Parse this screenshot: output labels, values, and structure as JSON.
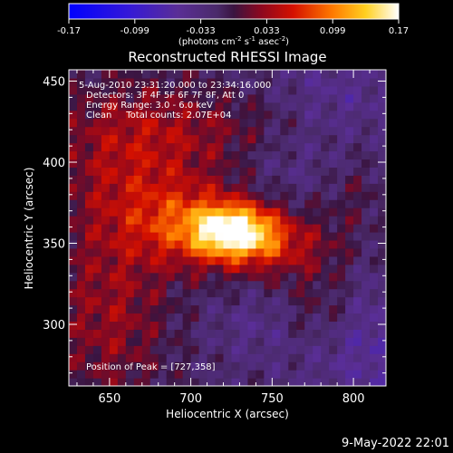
{
  "chart_data": {
    "type": "heatmap",
    "title": "Reconstructed RHESSI Image",
    "xlabel": "Heliocentric X (arcsec)",
    "ylabel": "Heliocentric Y (arcsec)",
    "xlim": [
      625,
      820
    ],
    "ylim": [
      262,
      457
    ],
    "xticks": [
      650,
      700,
      750,
      800
    ],
    "yticks": [
      300,
      350,
      400,
      450
    ],
    "colorbar": {
      "min": -0.17,
      "max": 0.17,
      "ticks": [
        "-0.17",
        "-0.099",
        "-0.033",
        "0.033",
        "0.099",
        "0.17"
      ],
      "units": "(photons cm",
      "units_exp1": "-2",
      "units_mid1": " s",
      "units_exp2": "-1",
      "units_mid2": " asec",
      "units_exp3": "-2",
      "units_end": ")"
    },
    "annotations": [
      "5-Aug-2010 23:31:20.000 to 23:34:16.000",
      "Detectors: 3F 4F 5F 6F 7F 8F, Att 0",
      "Energy Range: 3.0 - 6.0 keV",
      "Clean     Total counts: 2.07E+04"
    ],
    "peak_label": "Position of Peak = [727,358]",
    "peak": {
      "x": 727,
      "y": 358,
      "value": 0.17
    },
    "sources": [
      {
        "x": 727,
        "y": 358,
        "sx": 18,
        "sy": 11,
        "amp": 0.15
      },
      {
        "x": 700,
        "y": 363,
        "sx": 28,
        "sy": 18,
        "amp": 0.07
      },
      {
        "x": 752,
        "y": 348,
        "sx": 30,
        "sy": 14,
        "amp": 0.06
      },
      {
        "x": 662,
        "y": 400,
        "sx": 34,
        "sy": 36,
        "amp": 0.055
      },
      {
        "x": 650,
        "y": 305,
        "sx": 26,
        "sy": 40,
        "amp": 0.05
      },
      {
        "x": 720,
        "y": 420,
        "sx": 50,
        "sy": 18,
        "amp": 0.03
      },
      {
        "x": 780,
        "y": 310,
        "sx": 18,
        "sy": 18,
        "amp": 0.035
      },
      {
        "x": 800,
        "y": 380,
        "sx": 14,
        "sy": 14,
        "amp": 0.02
      },
      {
        "x": 810,
        "y": 290,
        "sx": 30,
        "sy": 30,
        "amp": -0.04
      },
      {
        "x": 790,
        "y": 440,
        "sx": 30,
        "sy": 22,
        "amp": -0.03
      },
      {
        "x": 740,
        "y": 300,
        "sx": 20,
        "sy": 16,
        "amp": -0.02
      },
      {
        "x": 760,
        "y": 400,
        "sx": 22,
        "sy": 16,
        "amp": -0.02
      }
    ]
  },
  "timestamp": "9-May-2022 22:01"
}
